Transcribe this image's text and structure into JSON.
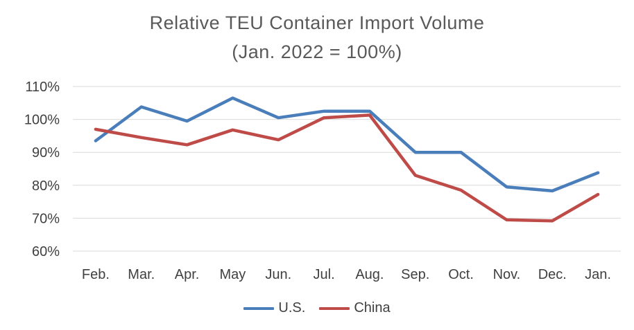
{
  "chart_data": {
    "type": "line",
    "title": "Relative TEU Container Import  Volume",
    "subtitle": "(Jan. 2022 = 100%)",
    "categories": [
      "Feb.",
      "Mar.",
      "Apr.",
      "May",
      "Jun.",
      "Jul.",
      "Aug.",
      "Sep.",
      "Oct.",
      "Nov.",
      "Dec.",
      "Jan."
    ],
    "series": [
      {
        "name": "U.S.",
        "color": "#4a7ebb",
        "values": [
          93.5,
          103.8,
          99.5,
          106.5,
          100.5,
          102.5,
          102.5,
          90.0,
          90.0,
          79.5,
          78.3,
          83.8
        ]
      },
      {
        "name": "China",
        "color": "#be4b48",
        "values": [
          97.0,
          94.5,
          92.3,
          96.8,
          93.8,
          100.5,
          101.3,
          83.0,
          78.5,
          69.5,
          69.2,
          77.2
        ]
      }
    ],
    "yticks": [
      "60%",
      "70%",
      "80%",
      "90%",
      "100%",
      "110%"
    ],
    "ylim": [
      60,
      110
    ],
    "xlabel": "",
    "ylabel": "",
    "grid": true,
    "legend": "bottom"
  }
}
